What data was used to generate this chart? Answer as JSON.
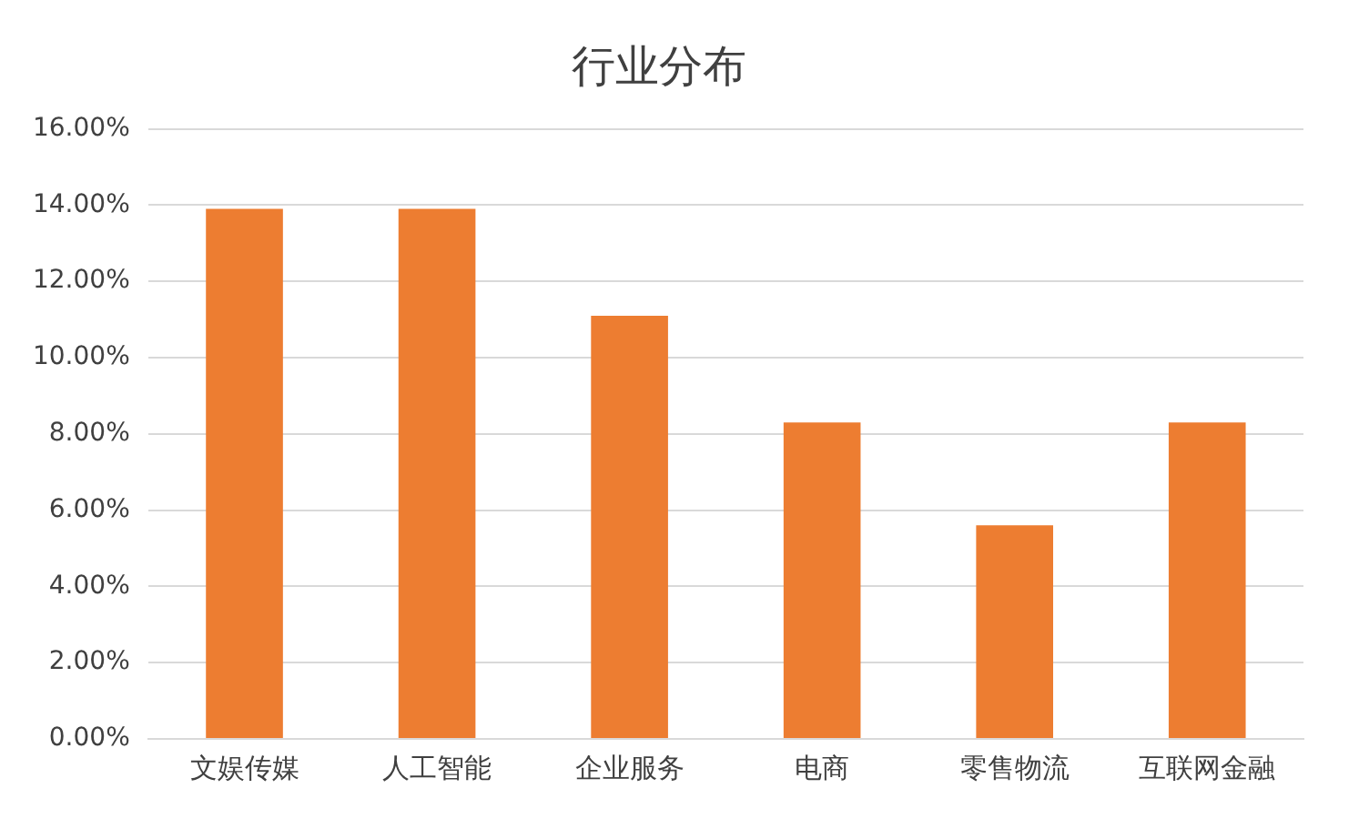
{
  "chart_data": {
    "type": "bar",
    "title": "行业分布",
    "categories": [
      "文娱传媒",
      "人工智能",
      "企业服务",
      "电商",
      "零售物流",
      "互联网金融"
    ],
    "values": [
      13.9,
      13.9,
      11.1,
      8.3,
      5.6,
      8.3
    ],
    "color": "#ed7d31",
    "ylim": [
      0,
      16
    ],
    "yticks": [
      {
        "value": 0,
        "label": "0.00%"
      },
      {
        "value": 2,
        "label": "2.00%"
      },
      {
        "value": 4,
        "label": "4.00%"
      },
      {
        "value": 6,
        "label": "6.00%"
      },
      {
        "value": 8,
        "label": "8.00%"
      },
      {
        "value": 10,
        "label": "10.00%"
      },
      {
        "value": 12,
        "label": "12.00%"
      },
      {
        "value": 14,
        "label": "14.00%"
      },
      {
        "value": 16,
        "label": "16.00%"
      }
    ],
    "grid": "y",
    "legend": false
  }
}
